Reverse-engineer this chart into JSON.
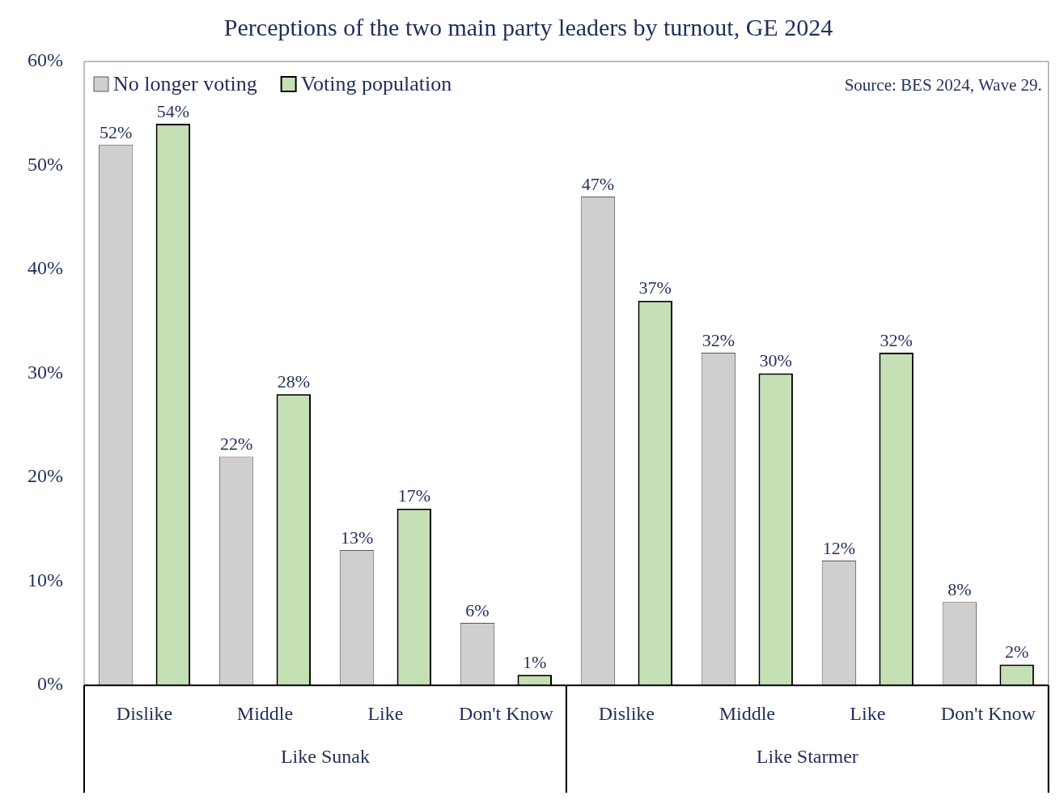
{
  "chart_data": {
    "type": "bar",
    "title": "Perceptions of the two main party leaders by turnout, GE 2024",
    "categories": [
      "Dislike",
      "Middle",
      "Like",
      "Don't Know",
      "Dislike",
      "Middle",
      "Like",
      "Don't Know"
    ],
    "series": [
      {
        "name": "No longer voting",
        "color": "#d0cece",
        "values": [
          52,
          22,
          13,
          6,
          47,
          32,
          12,
          8
        ],
        "value_labels": [
          "52%",
          "22%",
          "13%",
          "6%",
          "47%",
          "32%",
          "12%",
          "8%"
        ]
      },
      {
        "name": "Voting population",
        "color": "#c5e0b4",
        "values": [
          54,
          28,
          17,
          1,
          37,
          30,
          32,
          2
        ],
        "value_labels": [
          "54%",
          "28%",
          "17%",
          "1%",
          "37%",
          "30%",
          "32%",
          "2%"
        ]
      }
    ],
    "ylim": [
      0,
      60
    ],
    "yticks": [
      {
        "value": 0,
        "label": "0%"
      },
      {
        "value": 10,
        "label": "10%"
      },
      {
        "value": 20,
        "label": "20%"
      },
      {
        "value": 30,
        "label": "30%"
      },
      {
        "value": 40,
        "label": "40%"
      },
      {
        "value": 50,
        "label": "50%"
      },
      {
        "value": 60,
        "label": "60%"
      }
    ],
    "grid": false,
    "legend": "top left",
    "annotations": [
      "Source: BES 2024, Wave 29.",
      "Like Sunak",
      "Like Starmer"
    ]
  }
}
